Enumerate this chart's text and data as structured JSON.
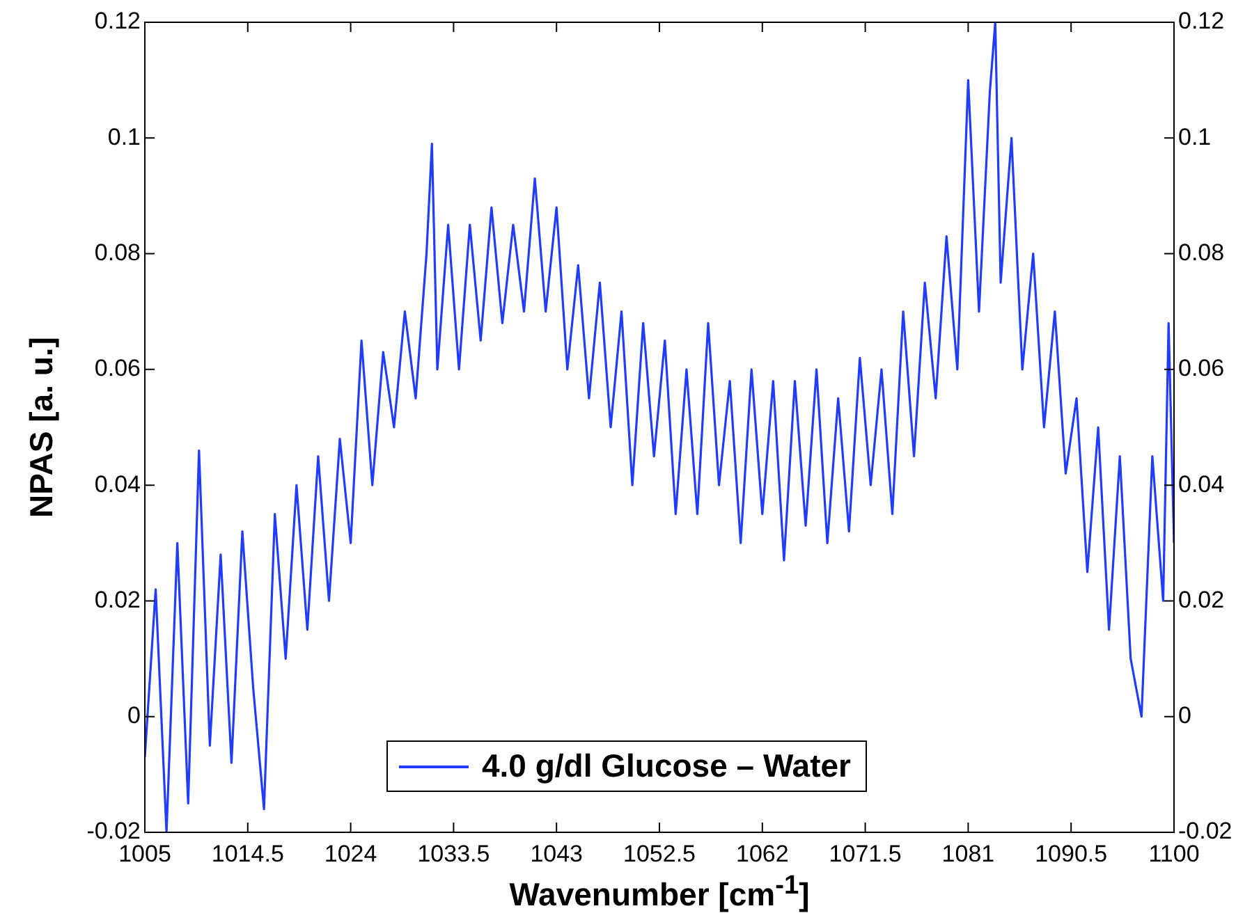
{
  "chart_data": {
    "type": "line",
    "xlabel": "Wavenumber [cm$^{-1}$]",
    "ylabel": "NPAS [a. u.]",
    "x": [
      1005,
      1006,
      1007,
      1008,
      1009,
      1010,
      1011,
      1012,
      1013,
      1014,
      1015,
      1016,
      1017,
      1018,
      1019,
      1020,
      1021,
      1022,
      1023,
      1024,
      1025,
      1026,
      1027,
      1028,
      1029,
      1030,
      1031,
      1031.5,
      1032,
      1033,
      1034,
      1035,
      1036,
      1037,
      1038,
      1039,
      1040,
      1041,
      1042,
      1043,
      1044,
      1045,
      1046,
      1047,
      1048,
      1049,
      1050,
      1051,
      1052,
      1053,
      1054,
      1055,
      1056,
      1057,
      1058,
      1059,
      1060,
      1061,
      1062,
      1063,
      1064,
      1065,
      1066,
      1067,
      1068,
      1069,
      1070,
      1071,
      1072,
      1073,
      1074,
      1075,
      1076,
      1077,
      1078,
      1079,
      1080,
      1081,
      1082,
      1083,
      1083.5,
      1084,
      1085,
      1086,
      1087,
      1088,
      1089,
      1090,
      1091,
      1092,
      1093,
      1094,
      1095,
      1096,
      1097,
      1098,
      1099,
      1099.5,
      1100
    ],
    "series": [
      {
        "name": "4.0 g/dl Glucose – Water",
        "color": "#1f3cff",
        "values": [
          -0.007,
          0.022,
          -0.02,
          0.03,
          -0.015,
          0.046,
          -0.005,
          0.028,
          -0.008,
          0.032,
          0.005,
          -0.016,
          0.035,
          0.01,
          0.04,
          0.015,
          0.045,
          0.02,
          0.048,
          0.03,
          0.065,
          0.04,
          0.063,
          0.05,
          0.07,
          0.055,
          0.08,
          0.099,
          0.06,
          0.085,
          0.06,
          0.085,
          0.065,
          0.088,
          0.068,
          0.085,
          0.07,
          0.093,
          0.07,
          0.088,
          0.06,
          0.078,
          0.055,
          0.075,
          0.05,
          0.07,
          0.04,
          0.068,
          0.045,
          0.065,
          0.035,
          0.06,
          0.035,
          0.068,
          0.04,
          0.058,
          0.03,
          0.06,
          0.035,
          0.058,
          0.027,
          0.058,
          0.033,
          0.06,
          0.03,
          0.055,
          0.032,
          0.062,
          0.04,
          0.06,
          0.035,
          0.07,
          0.045,
          0.075,
          0.055,
          0.083,
          0.06,
          0.11,
          0.07,
          0.108,
          0.12,
          0.075,
          0.1,
          0.06,
          0.08,
          0.05,
          0.07,
          0.042,
          0.055,
          0.025,
          0.05,
          0.015,
          0.045,
          0.01,
          0,
          0.045,
          0.02,
          0.068,
          0.03
        ]
      }
    ],
    "xlim": [
      1005,
      1100
    ],
    "xticks": [
      1005,
      1014.5,
      1024,
      1033.5,
      1043,
      1052.5,
      1062,
      1071.5,
      1081,
      1090.5,
      1100
    ],
    "ylim": [
      -0.02,
      0.12
    ],
    "yticks": [
      -0.02,
      0,
      0.02,
      0.04,
      0.06,
      0.08,
      0.1,
      0.12
    ],
    "y2lim": [
      -0.02,
      0.12
    ],
    "y2ticks": [
      -0.02,
      0,
      0.02,
      0.04,
      0.06,
      0.08,
      0.1,
      0.12
    ],
    "legend": "bottom",
    "grid": false,
    "marker": "none",
    "line_style": "solid"
  }
}
